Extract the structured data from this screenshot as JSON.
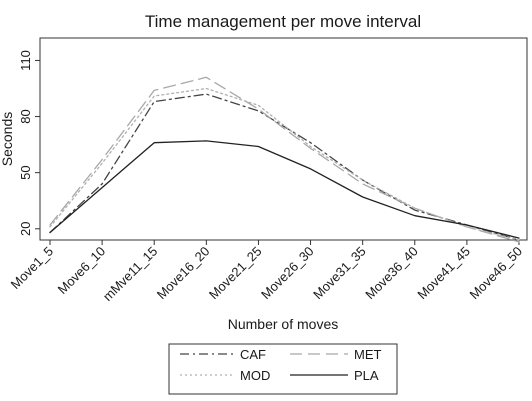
{
  "chart_data": {
    "type": "line",
    "title": "Time management per move interval",
    "xlabel": "Number of moves",
    "ylabel": "Seconds",
    "categories": [
      "Move1_5",
      "Move6_10",
      "mMve11_15",
      "Move16_20",
      "Move21_25",
      "Move26_30",
      "Move31_35",
      "Move36_40",
      "Move41_45",
      "Move46_50"
    ],
    "ylim": [
      14,
      122
    ],
    "yticks": [
      20,
      50,
      80,
      110
    ],
    "grid": false,
    "legend_position": "bottom",
    "series": [
      {
        "name": "CAF",
        "dash": "dash-dot",
        "color": "#444444",
        "values": [
          18,
          44,
          88,
          92,
          83,
          66,
          46,
          30,
          22,
          14
        ]
      },
      {
        "name": "MET",
        "dash": "long-dash",
        "color": "#a8a8a8",
        "values": [
          22,
          57,
          94,
          101,
          84,
          63,
          44,
          31,
          21,
          13
        ]
      },
      {
        "name": "MOD",
        "dash": "dotted",
        "color": "#b0b0b0",
        "values": [
          21,
          55,
          91,
          95,
          86,
          64,
          46,
          31,
          21,
          14
        ]
      },
      {
        "name": "PLA",
        "dash": "solid",
        "color": "#222222",
        "values": [
          18,
          42,
          66,
          67,
          64,
          52,
          37,
          27,
          22,
          15
        ]
      }
    ]
  }
}
